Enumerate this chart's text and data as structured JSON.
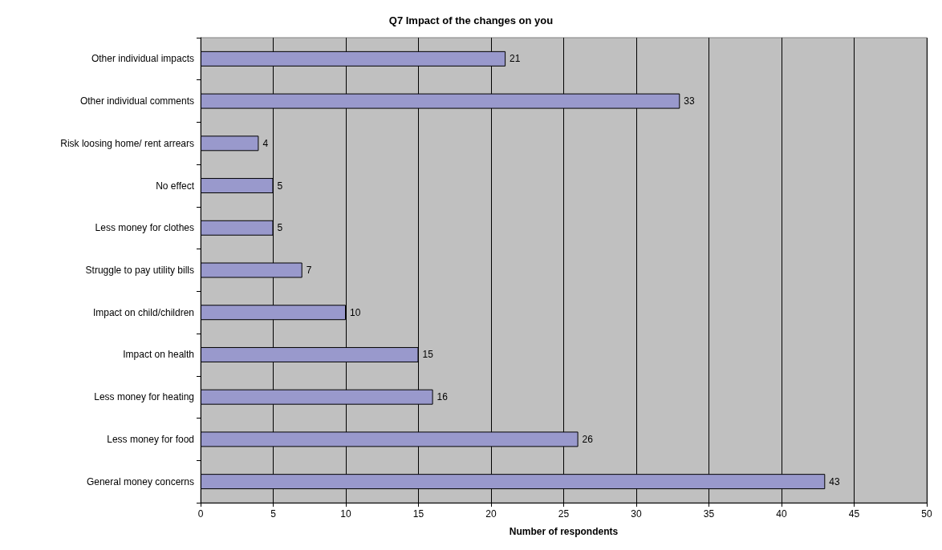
{
  "chart_data": {
    "type": "bar",
    "orientation": "horizontal",
    "title": "Q7 Impact of the changes on you",
    "xlabel": "Number of respondents",
    "categories": [
      "Other individual impacts",
      "Other individual comments",
      "Risk loosing home/ rent arrears",
      "No effect",
      "Less money for clothes",
      "Struggle to pay utility bills",
      "Impact on child/children",
      "Impact on health",
      "Less money for heating",
      "Less money for food",
      "General money concerns"
    ],
    "values": [
      21,
      33,
      4,
      5,
      5,
      7,
      10,
      15,
      16,
      26,
      43
    ],
    "color": "#9999cc",
    "xlim": [
      0,
      50
    ],
    "xticks": [
      0,
      5,
      10,
      15,
      20,
      25,
      30,
      35,
      40,
      45,
      50
    ],
    "grid": "x",
    "data_labels": true
  }
}
